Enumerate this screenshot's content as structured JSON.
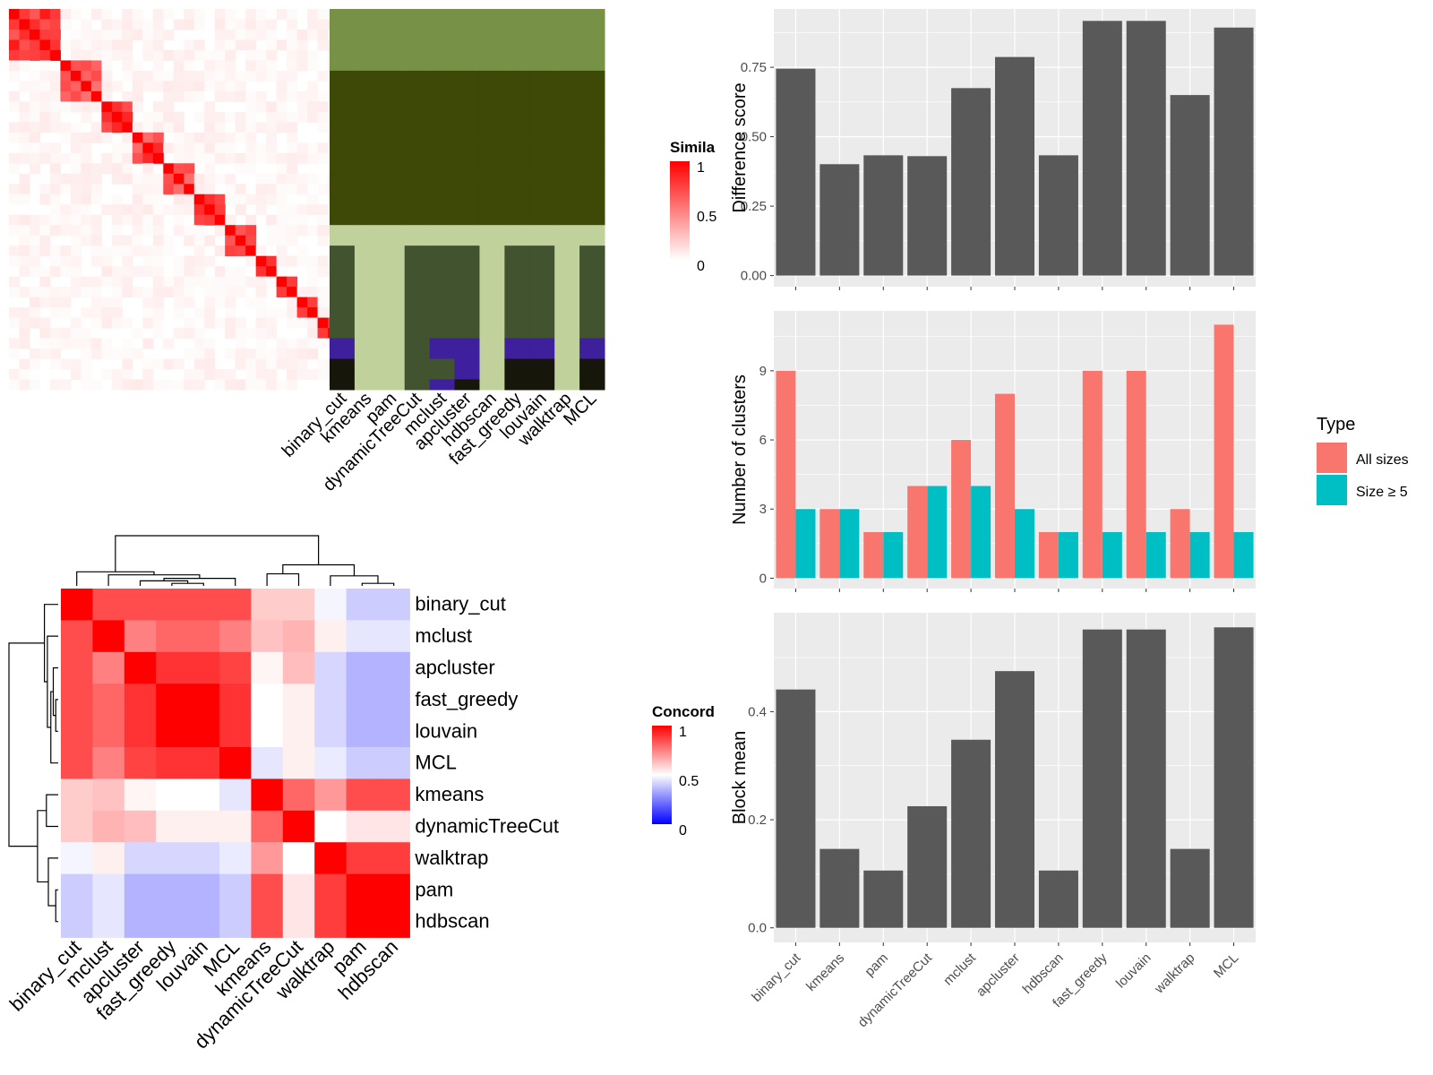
{
  "methods": [
    "binary_cut",
    "kmeans",
    "pam",
    "dynamicTreeCut",
    "mclust",
    "apcluster",
    "hdbscan",
    "fast_greedy",
    "louvain",
    "walktrap",
    "MCL"
  ],
  "similarity_heatmap": {
    "legend_title": "Simila",
    "legend_ticks": [
      "1",
      "0.5",
      "0"
    ],
    "n_terms": 37,
    "blocks": [
      [
        0,
        4
      ],
      [
        5,
        8
      ],
      [
        9,
        11
      ],
      [
        12,
        14
      ],
      [
        15,
        17
      ],
      [
        18,
        20
      ],
      [
        21,
        23
      ],
      [
        24,
        25
      ],
      [
        26,
        27
      ],
      [
        28,
        29
      ],
      [
        30,
        31
      ],
      [
        32,
        33
      ],
      [
        34,
        36
      ]
    ],
    "colors": [
      "#FF0000",
      "#FFFFFF"
    ]
  },
  "cluster_label_panel": {
    "row_blocks": [
      [
        0,
        5
      ],
      [
        6,
        12
      ],
      [
        13,
        15
      ],
      [
        16,
        20
      ],
      [
        21,
        22
      ],
      [
        23,
        31
      ],
      [
        32,
        33
      ],
      [
        34,
        35
      ],
      [
        36,
        36
      ]
    ],
    "column_categories": [
      [
        0,
        1,
        1,
        1,
        2,
        3,
        4,
        5,
        5,
        5,
        5,
        6,
        6,
        6,
        7,
        8,
        9,
        10
      ],
      [
        0,
        1,
        1,
        1,
        2,
        2,
        2,
        2,
        2,
        2,
        2,
        2,
        2,
        2,
        2,
        2,
        2,
        10
      ],
      [
        0,
        1,
        1,
        1,
        2,
        2,
        2,
        2,
        2,
        2,
        2,
        2,
        2,
        2,
        2,
        2,
        2,
        10
      ],
      [
        0,
        1,
        1,
        1,
        2,
        3,
        3,
        3,
        3,
        3,
        3,
        3,
        3,
        3,
        3,
        3,
        3,
        10
      ],
      [
        0,
        1,
        1,
        1,
        2,
        3,
        4,
        3,
        4,
        11,
        4,
        4,
        4,
        4,
        4,
        4,
        4,
        10
      ],
      [
        0,
        1,
        1,
        1,
        2,
        3,
        4,
        4,
        5,
        5,
        5,
        12,
        12,
        12,
        12,
        12,
        12,
        10
      ],
      [
        0,
        1,
        1,
        1,
        2,
        2,
        2,
        2,
        2,
        2,
        2,
        2,
        2,
        2,
        2,
        2,
        2,
        2
      ],
      [
        0,
        1,
        1,
        1,
        2,
        3,
        4,
        5,
        5,
        5,
        5,
        6,
        6,
        6,
        7,
        8,
        9,
        10
      ],
      [
        0,
        1,
        1,
        1,
        2,
        3,
        4,
        5,
        5,
        5,
        5,
        6,
        6,
        6,
        7,
        8,
        9,
        10
      ],
      [
        0,
        1,
        1,
        1,
        2,
        2,
        2,
        2,
        2,
        2,
        2,
        2,
        2,
        2,
        2,
        2,
        2,
        10
      ],
      [
        0,
        1,
        1,
        1,
        2,
        3,
        4,
        5,
        5,
        5,
        11,
        12,
        13,
        12,
        12,
        14,
        9,
        10
      ]
    ],
    "palette": [
      "#779146",
      "#3F4907",
      "#C1D19C",
      "#41532F",
      "#3E1F9C",
      "#17160A",
      "#1F3A4A",
      "#0A0E1A",
      "#1B3A50",
      "#3A2F95",
      "#F04C64",
      "#F7D6D6",
      "#0D1020",
      "#77913F",
      "#000000"
    ]
  },
  "concordance_heatmap": {
    "legend_title": "Concord",
    "legend_ticks": [
      "1",
      "0.5",
      "0"
    ],
    "order": [
      "binary_cut",
      "mclust",
      "apcluster",
      "fast_greedy",
      "louvain",
      "MCL",
      "kmeans",
      "dynamicTreeCut",
      "walktrap",
      "pam",
      "hdbscan"
    ],
    "matrix": [
      [
        1.0,
        0.85,
        0.85,
        0.85,
        0.85,
        0.85,
        0.6,
        0.6,
        0.48,
        0.4,
        0.4
      ],
      [
        0.85,
        1.0,
        0.75,
        0.8,
        0.8,
        0.75,
        0.62,
        0.65,
        0.53,
        0.45,
        0.45
      ],
      [
        0.85,
        0.75,
        1.0,
        0.9,
        0.9,
        0.87,
        0.52,
        0.63,
        0.42,
        0.35,
        0.35
      ],
      [
        0.85,
        0.8,
        0.9,
        1.0,
        1.0,
        0.9,
        0.5,
        0.53,
        0.42,
        0.35,
        0.35
      ],
      [
        0.85,
        0.8,
        0.9,
        1.0,
        1.0,
        0.9,
        0.5,
        0.53,
        0.42,
        0.35,
        0.35
      ],
      [
        0.85,
        0.75,
        0.87,
        0.9,
        0.9,
        1.0,
        0.45,
        0.53,
        0.46,
        0.4,
        0.4
      ],
      [
        0.6,
        0.62,
        0.52,
        0.5,
        0.5,
        0.45,
        1.0,
        0.8,
        0.7,
        0.85,
        0.85
      ],
      [
        0.6,
        0.65,
        0.63,
        0.53,
        0.53,
        0.53,
        0.8,
        1.0,
        0.5,
        0.55,
        0.55
      ],
      [
        0.48,
        0.53,
        0.42,
        0.42,
        0.42,
        0.46,
        0.7,
        0.5,
        1.0,
        0.88,
        0.88
      ],
      [
        0.4,
        0.45,
        0.35,
        0.35,
        0.35,
        0.4,
        0.85,
        0.55,
        0.88,
        1.0,
        1.0
      ],
      [
        0.4,
        0.45,
        0.35,
        0.35,
        0.35,
        0.4,
        0.85,
        0.55,
        0.88,
        1.0,
        1.0
      ]
    ]
  },
  "chart_data": [
    {
      "type": "bar",
      "ylabel": "Difference score",
      "categories": [
        "binary_cut",
        "kmeans",
        "pam",
        "dynamicTreeCut",
        "mclust",
        "apcluster",
        "hdbscan",
        "fast_greedy",
        "louvain",
        "walktrap",
        "MCL"
      ],
      "values": [
        0.745,
        0.401,
        0.433,
        0.43,
        0.675,
        0.787,
        0.433,
        0.917,
        0.917,
        0.65,
        0.893
      ],
      "ylim": [
        -0.04,
        0.96
      ],
      "yticks": [
        0,
        0.25,
        0.5,
        0.75
      ],
      "yticklabels": [
        "0.00",
        "0.25",
        "0.50",
        "0.75"
      ],
      "grid": true
    },
    {
      "type": "bar",
      "ylabel": "Number of clusters",
      "categories": [
        "binary_cut",
        "kmeans",
        "pam",
        "dynamicTreeCut",
        "mclust",
        "apcluster",
        "hdbscan",
        "fast_greedy",
        "louvain",
        "walktrap",
        "MCL"
      ],
      "series": [
        {
          "name": "All sizes",
          "color": "#F8766D",
          "values": [
            9,
            3,
            2,
            4,
            6,
            8,
            2,
            9,
            9,
            3,
            11
          ]
        },
        {
          "name": "Size ≥ 5",
          "color": "#00BFC4",
          "values": [
            3,
            3,
            2,
            4,
            4,
            3,
            2,
            2,
            2,
            2,
            2
          ]
        }
      ],
      "ylim": [
        -0.45,
        11.6
      ],
      "yticks": [
        0,
        3,
        6,
        9
      ],
      "yticklabels": [
        "0",
        "3",
        "6",
        "9"
      ],
      "legend": {
        "title": "Type",
        "position": "right"
      },
      "grid": true
    },
    {
      "type": "bar",
      "ylabel": "Block mean",
      "categories": [
        "binary_cut",
        "kmeans",
        "pam",
        "dynamicTreeCut",
        "mclust",
        "apcluster",
        "hdbscan",
        "fast_greedy",
        "louvain",
        "walktrap",
        "MCL"
      ],
      "values": [
        0.441,
        0.146,
        0.106,
        0.225,
        0.348,
        0.475,
        0.106,
        0.552,
        0.552,
        0.146,
        0.556
      ],
      "ylim": [
        -0.027,
        0.583
      ],
      "yticks": [
        0,
        0.2,
        0.4
      ],
      "yticklabels": [
        "0.0",
        "0.2",
        "0.4"
      ],
      "grid": true
    }
  ]
}
